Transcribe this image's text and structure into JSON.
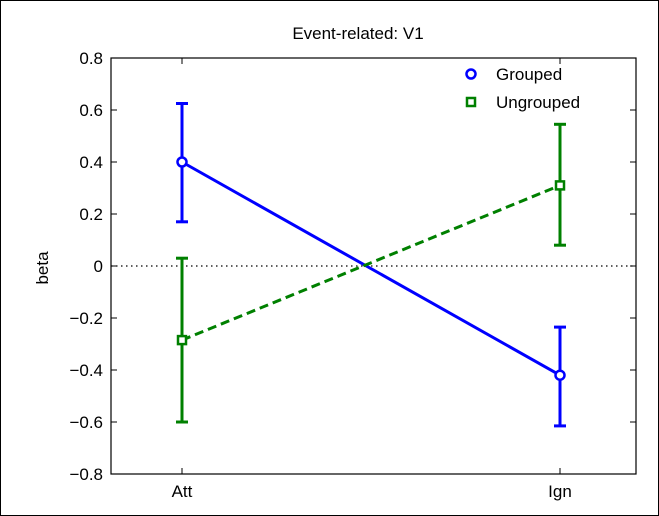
{
  "chart_data": {
    "type": "line",
    "title": "Event-related: V1",
    "xlabel": "",
    "ylabel": "beta",
    "categories": [
      "Att",
      "Ign"
    ],
    "ylim": [
      -0.8,
      0.8
    ],
    "yticks": [
      -0.8,
      -0.6,
      -0.4,
      -0.2,
      0,
      0.2,
      0.4,
      0.6,
      0.8
    ],
    "ytick_labels": [
      "−0.8",
      "−0.6",
      "−0.4",
      "−0.2",
      "0",
      "0.2",
      "0.4",
      "0.6",
      "0.8"
    ],
    "zero_line": true,
    "grid": false,
    "legend_position": "top-right",
    "series": [
      {
        "name": "Grouped",
        "values": [
          0.4,
          -0.42
        ],
        "error_low": [
          0.17,
          -0.615
        ],
        "error_high": [
          0.625,
          -0.235
        ],
        "color": "#0000ff",
        "line_style": "solid",
        "marker": "circle"
      },
      {
        "name": "Ungrouped",
        "values": [
          -0.285,
          0.31
        ],
        "error_low": [
          -0.6,
          0.08
        ],
        "error_high": [
          0.03,
          0.545
        ],
        "color": "#008000",
        "line_style": "dashed",
        "marker": "square"
      }
    ]
  }
}
